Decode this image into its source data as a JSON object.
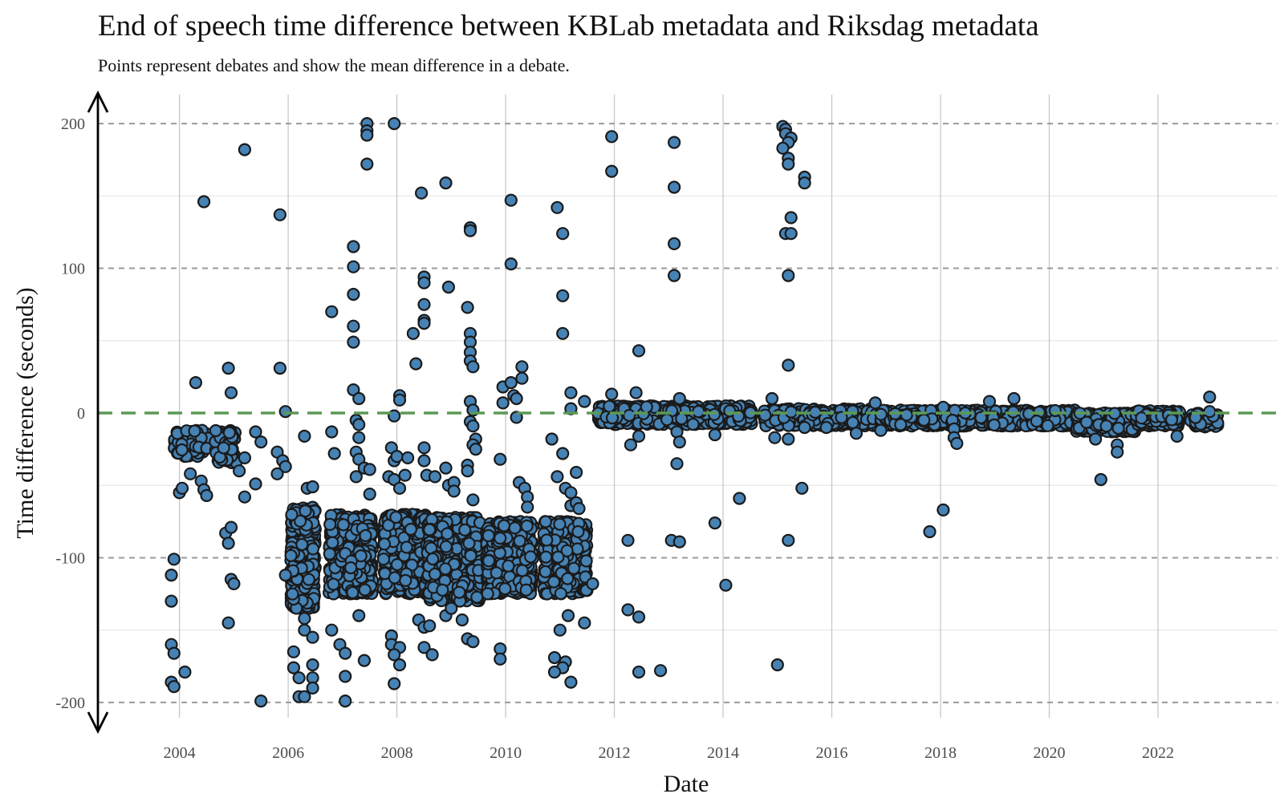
{
  "chart_data": {
    "type": "scatter",
    "title": "End of speech time difference between KBLab metadata and Riksdag metadata",
    "subtitle": "Points represent debates and show the mean difference in a debate.",
    "xlabel": "Date",
    "ylabel": "Time difference (seconds)",
    "x_ticks": [
      "2004",
      "2006",
      "2008",
      "2010",
      "2012",
      "2014",
      "2016",
      "2018",
      "2020",
      "2022"
    ],
    "y_ticks": [
      "-200",
      "-100",
      "0",
      "100",
      "200"
    ],
    "xlim": [
      2002.5,
      2024.2
    ],
    "ylim": [
      -220,
      220
    ],
    "reference_line": {
      "y": 0,
      "color": "#5b9a55",
      "style": "dashed"
    },
    "grid": true,
    "colors": {
      "point_fill": "#4682b4",
      "point_edge": "#1a1a1a",
      "reference_line": "#5b9a55"
    },
    "series": [
      {
        "clusters": [
          {
            "x": [
              2003.9,
              2004.55
            ],
            "y": [
              -30,
              -12
            ],
            "n": 90
          },
          {
            "x": [
              2004.65,
              2005.05
            ],
            "y": [
              -35,
              -12
            ],
            "n": 60
          },
          {
            "x": [
              2006.05,
              2006.5
            ],
            "y": [
              -135,
              -65
            ],
            "n": 380
          },
          {
            "x": [
              2006.75,
              2007.55
            ],
            "y": [
              -125,
              -70
            ],
            "n": 420
          },
          {
            "x": [
              2007.75,
              2008.55
            ],
            "y": [
              -125,
              -70
            ],
            "n": 430
          },
          {
            "x": [
              2008.55,
              2009.55
            ],
            "y": [
              -130,
              -72
            ],
            "n": 520
          },
          {
            "x": [
              2009.65,
              2010.5
            ],
            "y": [
              -125,
              -75
            ],
            "n": 440
          },
          {
            "x": [
              2010.7,
              2011.5
            ],
            "y": [
              -125,
              -75
            ],
            "n": 420
          },
          {
            "x": [
              2011.7,
              2014.55
            ],
            "y": [
              -8,
              5
            ],
            "n": 520
          },
          {
            "x": [
              2014.75,
              2016.9
            ],
            "y": [
              -9,
              3
            ],
            "n": 420
          },
          {
            "x": [
              2016.9,
              2018.95
            ],
            "y": [
              -9,
              2
            ],
            "n": 380
          },
          {
            "x": [
              2018.95,
              2020.5
            ],
            "y": [
              -9,
              2
            ],
            "n": 300
          },
          {
            "x": [
              2020.5,
              2021.6
            ],
            "y": [
              -13,
              0
            ],
            "n": 280
          },
          {
            "x": [
              2021.6,
              2022.4
            ],
            "y": [
              -9,
              2
            ],
            "n": 200
          },
          {
            "x": [
              2022.6,
              2023.1
            ],
            "y": [
              -10,
              0
            ],
            "n": 60
          }
        ],
        "points": [
          [
            2004.3,
            21
          ],
          [
            2004.45,
            146
          ],
          [
            2003.9,
            -101
          ],
          [
            2003.85,
            -112
          ],
          [
            2003.85,
            -130
          ],
          [
            2003.85,
            -160
          ],
          [
            2003.9,
            -166
          ],
          [
            2003.85,
            -186
          ],
          [
            2003.9,
            -189
          ],
          [
            2004.1,
            -179
          ],
          [
            2004.2,
            -42
          ],
          [
            2004.0,
            -55
          ],
          [
            2004.05,
            -52
          ],
          [
            2004.4,
            -47
          ],
          [
            2004.45,
            -53
          ],
          [
            2004.5,
            -57
          ],
          [
            2004.9,
            31
          ],
          [
            2004.95,
            14
          ],
          [
            2005.2,
            182
          ],
          [
            2005.2,
            -31
          ],
          [
            2005.1,
            -40
          ],
          [
            2005.2,
            -58
          ],
          [
            2004.85,
            -83
          ],
          [
            2004.9,
            -90
          ],
          [
            2004.95,
            -79
          ],
          [
            2004.95,
            -115
          ],
          [
            2005.0,
            -118
          ],
          [
            2004.9,
            -145
          ],
          [
            2005.4,
            -13
          ],
          [
            2005.5,
            -20
          ],
          [
            2005.4,
            -49
          ],
          [
            2005.5,
            -199
          ],
          [
            2005.85,
            137
          ],
          [
            2005.85,
            31
          ],
          [
            2005.95,
            1
          ],
          [
            2005.8,
            -27
          ],
          [
            2005.9,
            -33
          ],
          [
            2005.95,
            -37
          ],
          [
            2005.8,
            -42
          ],
          [
            2005.95,
            -112
          ],
          [
            2006.3,
            -16
          ],
          [
            2006.35,
            -52
          ],
          [
            2006.45,
            -51
          ],
          [
            2006.1,
            -165
          ],
          [
            2006.1,
            -176
          ],
          [
            2006.2,
            -183
          ],
          [
            2006.2,
            -196
          ],
          [
            2006.3,
            -196
          ],
          [
            2006.45,
            -174
          ],
          [
            2006.45,
            -183
          ],
          [
            2006.45,
            -190
          ],
          [
            2006.3,
            -142
          ],
          [
            2006.3,
            -150
          ],
          [
            2006.45,
            -155
          ],
          [
            2006.8,
            70
          ],
          [
            2006.8,
            -13
          ],
          [
            2006.85,
            -28
          ],
          [
            2006.8,
            -150
          ],
          [
            2006.95,
            -160
          ],
          [
            2007.05,
            -166
          ],
          [
            2007.05,
            -182
          ],
          [
            2007.05,
            -199
          ],
          [
            2007.2,
            115
          ],
          [
            2007.2,
            101
          ],
          [
            2007.2,
            82
          ],
          [
            2007.2,
            60
          ],
          [
            2007.2,
            49
          ],
          [
            2007.2,
            16
          ],
          [
            2007.3,
            10
          ],
          [
            2007.25,
            -5
          ],
          [
            2007.3,
            -8
          ],
          [
            2007.3,
            -17
          ],
          [
            2007.25,
            -27
          ],
          [
            2007.3,
            -32
          ],
          [
            2007.25,
            -44
          ],
          [
            2007.4,
            -38
          ],
          [
            2007.5,
            -39
          ],
          [
            2007.5,
            -56
          ],
          [
            2007.3,
            -140
          ],
          [
            2007.4,
            -171
          ],
          [
            2007.45,
            200
          ],
          [
            2007.45,
            195
          ],
          [
            2007.45,
            192
          ],
          [
            2007.45,
            172
          ],
          [
            2007.95,
            200
          ],
          [
            2007.95,
            -2
          ],
          [
            2008.05,
            12
          ],
          [
            2008.05,
            9
          ],
          [
            2007.9,
            -24
          ],
          [
            2007.95,
            -33
          ],
          [
            2008.0,
            -30
          ],
          [
            2007.85,
            -44
          ],
          [
            2007.95,
            -46
          ],
          [
            2008.05,
            -52
          ],
          [
            2008.2,
            -31
          ],
          [
            2008.15,
            -43
          ],
          [
            2007.9,
            -154
          ],
          [
            2007.9,
            -160
          ],
          [
            2008.05,
            -162
          ],
          [
            2007.95,
            -167
          ],
          [
            2008.05,
            -174
          ],
          [
            2007.95,
            -187
          ],
          [
            2008.4,
            -143
          ],
          [
            2008.5,
            -148
          ],
          [
            2008.6,
            -147
          ],
          [
            2008.5,
            -162
          ],
          [
            2008.65,
            -167
          ],
          [
            2008.45,
            152
          ],
          [
            2008.5,
            94
          ],
          [
            2008.5,
            90
          ],
          [
            2008.5,
            75
          ],
          [
            2008.5,
            64
          ],
          [
            2008.5,
            62
          ],
          [
            2008.3,
            55
          ],
          [
            2008.35,
            34
          ],
          [
            2008.5,
            -24
          ],
          [
            2008.5,
            -33
          ],
          [
            2008.55,
            -43
          ],
          [
            2008.7,
            -44
          ],
          [
            2008.9,
            159
          ],
          [
            2008.95,
            87
          ],
          [
            2008.9,
            -38
          ],
          [
            2008.95,
            -50
          ],
          [
            2009.05,
            -48
          ],
          [
            2009.05,
            -54
          ],
          [
            2008.9,
            -140
          ],
          [
            2009.0,
            -135
          ],
          [
            2009.2,
            -143
          ],
          [
            2009.35,
            128
          ],
          [
            2009.35,
            126
          ],
          [
            2009.3,
            73
          ],
          [
            2009.35,
            55
          ],
          [
            2009.35,
            49
          ],
          [
            2009.35,
            42
          ],
          [
            2009.35,
            36
          ],
          [
            2009.4,
            32
          ],
          [
            2009.35,
            8
          ],
          [
            2009.4,
            2
          ],
          [
            2009.35,
            -6
          ],
          [
            2009.4,
            -9
          ],
          [
            2009.45,
            -18
          ],
          [
            2009.4,
            -22
          ],
          [
            2009.45,
            -25
          ],
          [
            2009.3,
            -36
          ],
          [
            2009.3,
            -40
          ],
          [
            2009.4,
            -60
          ],
          [
            2009.3,
            -156
          ],
          [
            2009.4,
            -158
          ],
          [
            2009.9,
            -32
          ],
          [
            2009.95,
            18
          ],
          [
            2010.1,
            21
          ],
          [
            2010.15,
            12
          ],
          [
            2010.2,
            10
          ],
          [
            2009.95,
            7
          ],
          [
            2010.2,
            -3
          ],
          [
            2010.3,
            32
          ],
          [
            2010.3,
            24
          ],
          [
            2010.25,
            -48
          ],
          [
            2010.35,
            -52
          ],
          [
            2010.4,
            -58
          ],
          [
            2010.4,
            -65
          ],
          [
            2009.9,
            -163
          ],
          [
            2009.9,
            -170
          ],
          [
            2010.1,
            147
          ],
          [
            2010.1,
            103
          ],
          [
            2010.95,
            142
          ],
          [
            2011.05,
            124
          ],
          [
            2011.05,
            81
          ],
          [
            2011.05,
            55
          ],
          [
            2010.85,
            -18
          ],
          [
            2011.05,
            -28
          ],
          [
            2010.95,
            -44
          ],
          [
            2011.1,
            -52
          ],
          [
            2011.2,
            -55
          ],
          [
            2011.3,
            -41
          ],
          [
            2011.2,
            -64
          ],
          [
            2011.3,
            -62
          ],
          [
            2011.35,
            -66
          ],
          [
            2011.0,
            -150
          ],
          [
            2010.9,
            -169
          ],
          [
            2011.1,
            -172
          ],
          [
            2011.05,
            -176
          ],
          [
            2010.9,
            -179
          ],
          [
            2011.2,
            -186
          ],
          [
            2011.15,
            -140
          ],
          [
            2011.45,
            -145
          ],
          [
            2011.6,
            -118
          ],
          [
            2011.2,
            14
          ],
          [
            2011.2,
            3
          ],
          [
            2011.45,
            8
          ],
          [
            2011.95,
            191
          ],
          [
            2011.95,
            167
          ],
          [
            2011.95,
            13
          ],
          [
            2012.45,
            43
          ],
          [
            2012.4,
            14
          ],
          [
            2012.3,
            -22
          ],
          [
            2012.45,
            -16
          ],
          [
            2012.25,
            -88
          ],
          [
            2012.25,
            -136
          ],
          [
            2012.45,
            -141
          ],
          [
            2012.45,
            -179
          ],
          [
            2012.85,
            -178
          ],
          [
            2013.1,
            187
          ],
          [
            2013.1,
            156
          ],
          [
            2013.1,
            117
          ],
          [
            2013.1,
            95
          ],
          [
            2013.2,
            10
          ],
          [
            2013.15,
            -13
          ],
          [
            2013.2,
            -20
          ],
          [
            2013.15,
            -35
          ],
          [
            2013.05,
            -88
          ],
          [
            2013.2,
            -89
          ],
          [
            2013.85,
            -15
          ],
          [
            2013.85,
            -76
          ],
          [
            2014.05,
            -119
          ],
          [
            2014.3,
            -59
          ],
          [
            2014.9,
            10
          ],
          [
            2014.95,
            -17
          ],
          [
            2015.2,
            -18
          ],
          [
            2015.2,
            -88
          ],
          [
            2015.0,
            -174
          ],
          [
            2015.45,
            -52
          ],
          [
            2015.1,
            198
          ],
          [
            2015.15,
            196
          ],
          [
            2015.15,
            193
          ],
          [
            2015.25,
            190
          ],
          [
            2015.2,
            187
          ],
          [
            2015.1,
            183
          ],
          [
            2015.2,
            176
          ],
          [
            2015.2,
            172
          ],
          [
            2015.5,
            163
          ],
          [
            2015.5,
            159
          ],
          [
            2015.25,
            135
          ],
          [
            2015.15,
            124
          ],
          [
            2015.25,
            124
          ],
          [
            2015.2,
            95
          ],
          [
            2015.2,
            33
          ],
          [
            2015.5,
            -10
          ],
          [
            2015.9,
            -10
          ],
          [
            2016.45,
            -14
          ],
          [
            2016.8,
            7
          ],
          [
            2016.9,
            -12
          ],
          [
            2017.8,
            -82
          ],
          [
            2018.05,
            -67
          ],
          [
            2018.05,
            4
          ],
          [
            2018.25,
            -11
          ],
          [
            2018.25,
            -17
          ],
          [
            2018.3,
            -21
          ],
          [
            2018.9,
            8
          ],
          [
            2019.35,
            10
          ],
          [
            2020.85,
            -18
          ],
          [
            2020.95,
            -46
          ],
          [
            2021.25,
            -22
          ],
          [
            2021.25,
            -27
          ],
          [
            2021.05,
            -9
          ],
          [
            2022.35,
            -16
          ],
          [
            2022.95,
            11
          ],
          [
            2022.95,
            1
          ]
        ]
      }
    ]
  }
}
